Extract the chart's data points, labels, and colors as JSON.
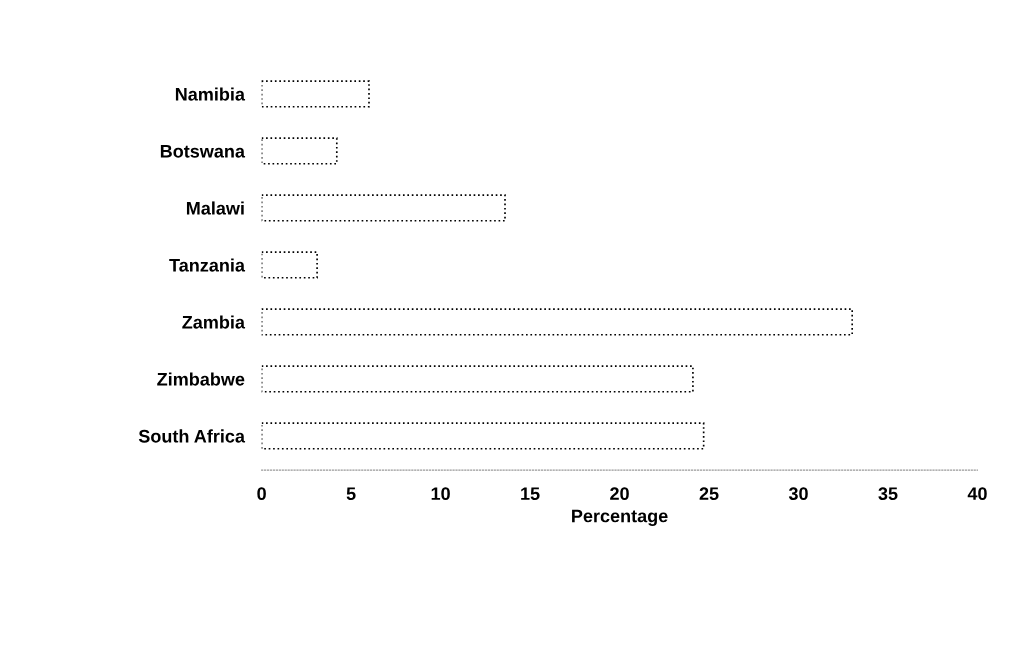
{
  "chart_data": {
    "type": "bar",
    "orientation": "horizontal",
    "xlabel": "Percentage",
    "categories": [
      "Namibia",
      "Botswana",
      "Malawi",
      "Tanzania",
      "Zambia",
      "Zimbabwe",
      "South Africa"
    ],
    "values": [
      6.0,
      4.2,
      13.6,
      3.1,
      33.0,
      24.1,
      24.7
    ],
    "color": "#ffffff",
    "xlim": [
      0,
      40
    ],
    "xticks": [
      0,
      5,
      10,
      15,
      20,
      25,
      30,
      35,
      40
    ],
    "grid": false
  }
}
